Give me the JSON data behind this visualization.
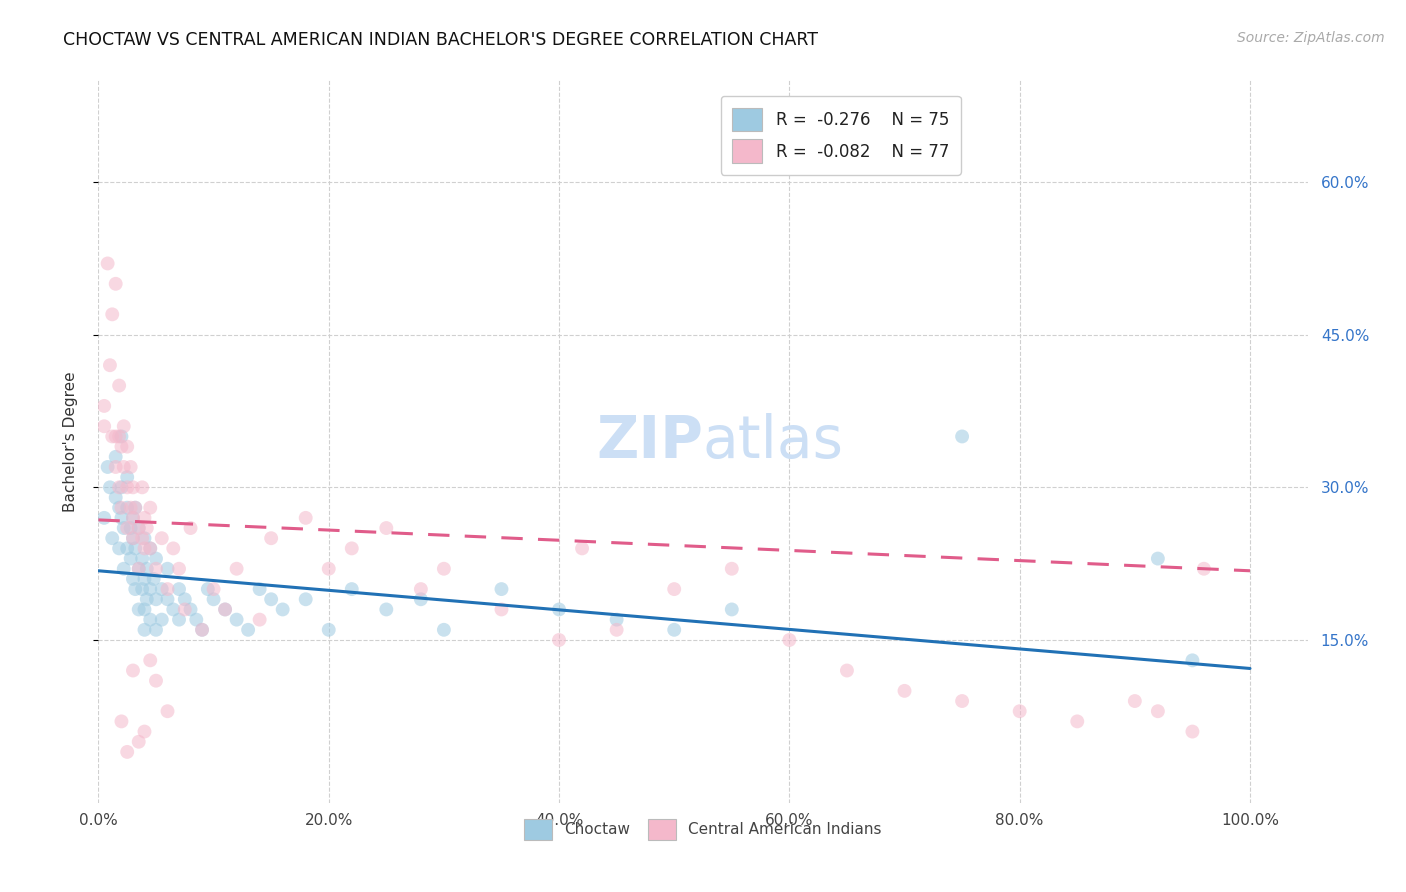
{
  "title": "CHOCTAW VS CENTRAL AMERICAN INDIAN BACHELOR'S DEGREE CORRELATION CHART",
  "source": "Source: ZipAtlas.com",
  "ylabel": "Bachelor's Degree",
  "ytick_labels": [
    "15.0%",
    "30.0%",
    "45.0%",
    "60.0%"
  ],
  "ytick_vals": [
    0.15,
    0.3,
    0.45,
    0.6
  ],
  "xtick_vals": [
    0.0,
    0.2,
    0.4,
    0.6,
    0.8,
    1.0
  ],
  "xtick_labels": [
    "0.0%",
    "20.0%",
    "40.0%",
    "60.0%",
    "80.0%",
    "100.0%"
  ],
  "xlim": [
    0.0,
    1.05
  ],
  "ylim": [
    -0.01,
    0.7
  ],
  "watermark_zip": "ZIP",
  "watermark_atlas": "atlas",
  "legend_r1_text": "R = ",
  "legend_r1_val": "-0.276",
  "legend_r1_n": "   N = ",
  "legend_r1_nval": "75",
  "legend_r2_text": "R = ",
  "legend_r2_val": "-0.082",
  "legend_r2_n": "   N = ",
  "legend_r2_nval": "77",
  "blue_color": "#9ecae1",
  "pink_color": "#f4b8cb",
  "blue_line_color": "#2171b5",
  "pink_line_color": "#e05c8a",
  "blue_trendline": [
    0.0,
    1.0,
    0.218,
    0.122
  ],
  "pink_trendline": [
    0.0,
    1.0,
    0.268,
    0.218
  ],
  "background_color": "#ffffff",
  "grid_color": "#d0d0d0",
  "title_fontsize": 12.5,
  "axis_label_fontsize": 11,
  "tick_fontsize": 11,
  "source_fontsize": 10,
  "watermark_fontsize_zip": 42,
  "watermark_fontsize_atlas": 42,
  "watermark_color": "#ccdff5",
  "scatter_size": 100,
  "scatter_alpha": 0.55,
  "choctaw_x": [
    0.005,
    0.008,
    0.01,
    0.012,
    0.015,
    0.015,
    0.018,
    0.018,
    0.02,
    0.02,
    0.02,
    0.022,
    0.022,
    0.025,
    0.025,
    0.025,
    0.028,
    0.028,
    0.03,
    0.03,
    0.03,
    0.032,
    0.032,
    0.032,
    0.035,
    0.035,
    0.035,
    0.038,
    0.038,
    0.04,
    0.04,
    0.04,
    0.04,
    0.042,
    0.042,
    0.045,
    0.045,
    0.045,
    0.048,
    0.05,
    0.05,
    0.05,
    0.055,
    0.055,
    0.06,
    0.06,
    0.065,
    0.07,
    0.07,
    0.075,
    0.08,
    0.085,
    0.09,
    0.095,
    0.1,
    0.11,
    0.12,
    0.13,
    0.14,
    0.15,
    0.16,
    0.18,
    0.2,
    0.22,
    0.25,
    0.28,
    0.3,
    0.35,
    0.4,
    0.45,
    0.5,
    0.55,
    0.75,
    0.92,
    0.95
  ],
  "choctaw_y": [
    0.27,
    0.32,
    0.3,
    0.25,
    0.29,
    0.33,
    0.24,
    0.28,
    0.35,
    0.3,
    0.27,
    0.26,
    0.22,
    0.28,
    0.24,
    0.31,
    0.23,
    0.26,
    0.25,
    0.21,
    0.27,
    0.24,
    0.2,
    0.28,
    0.22,
    0.26,
    0.18,
    0.23,
    0.2,
    0.25,
    0.21,
    0.18,
    0.16,
    0.22,
    0.19,
    0.24,
    0.2,
    0.17,
    0.21,
    0.23,
    0.19,
    0.16,
    0.2,
    0.17,
    0.22,
    0.19,
    0.18,
    0.2,
    0.17,
    0.19,
    0.18,
    0.17,
    0.16,
    0.2,
    0.19,
    0.18,
    0.17,
    0.16,
    0.2,
    0.19,
    0.18,
    0.19,
    0.16,
    0.2,
    0.18,
    0.19,
    0.16,
    0.2,
    0.18,
    0.17,
    0.16,
    0.18,
    0.35,
    0.23,
    0.13
  ],
  "central_x": [
    0.005,
    0.005,
    0.008,
    0.01,
    0.012,
    0.012,
    0.015,
    0.015,
    0.015,
    0.018,
    0.018,
    0.018,
    0.02,
    0.02,
    0.022,
    0.022,
    0.025,
    0.025,
    0.025,
    0.028,
    0.028,
    0.03,
    0.03,
    0.03,
    0.032,
    0.035,
    0.035,
    0.038,
    0.038,
    0.04,
    0.04,
    0.042,
    0.045,
    0.045,
    0.05,
    0.055,
    0.06,
    0.065,
    0.07,
    0.075,
    0.08,
    0.09,
    0.1,
    0.11,
    0.12,
    0.14,
    0.15,
    0.18,
    0.2,
    0.22,
    0.25,
    0.28,
    0.3,
    0.35,
    0.4,
    0.42,
    0.45,
    0.5,
    0.55,
    0.6,
    0.65,
    0.7,
    0.75,
    0.8,
    0.85,
    0.9,
    0.92,
    0.95,
    0.96,
    0.02,
    0.025,
    0.03,
    0.035,
    0.04,
    0.045,
    0.05,
    0.06
  ],
  "central_y": [
    0.36,
    0.38,
    0.52,
    0.42,
    0.35,
    0.47,
    0.35,
    0.32,
    0.5,
    0.3,
    0.35,
    0.4,
    0.34,
    0.28,
    0.32,
    0.36,
    0.3,
    0.26,
    0.34,
    0.28,
    0.32,
    0.27,
    0.3,
    0.25,
    0.28,
    0.26,
    0.22,
    0.25,
    0.3,
    0.27,
    0.24,
    0.26,
    0.28,
    0.24,
    0.22,
    0.25,
    0.2,
    0.24,
    0.22,
    0.18,
    0.26,
    0.16,
    0.2,
    0.18,
    0.22,
    0.17,
    0.25,
    0.27,
    0.22,
    0.24,
    0.26,
    0.2,
    0.22,
    0.18,
    0.15,
    0.24,
    0.16,
    0.2,
    0.22,
    0.15,
    0.12,
    0.1,
    0.09,
    0.08,
    0.07,
    0.09,
    0.08,
    0.06,
    0.22,
    0.07,
    0.04,
    0.12,
    0.05,
    0.06,
    0.13,
    0.11,
    0.08
  ]
}
